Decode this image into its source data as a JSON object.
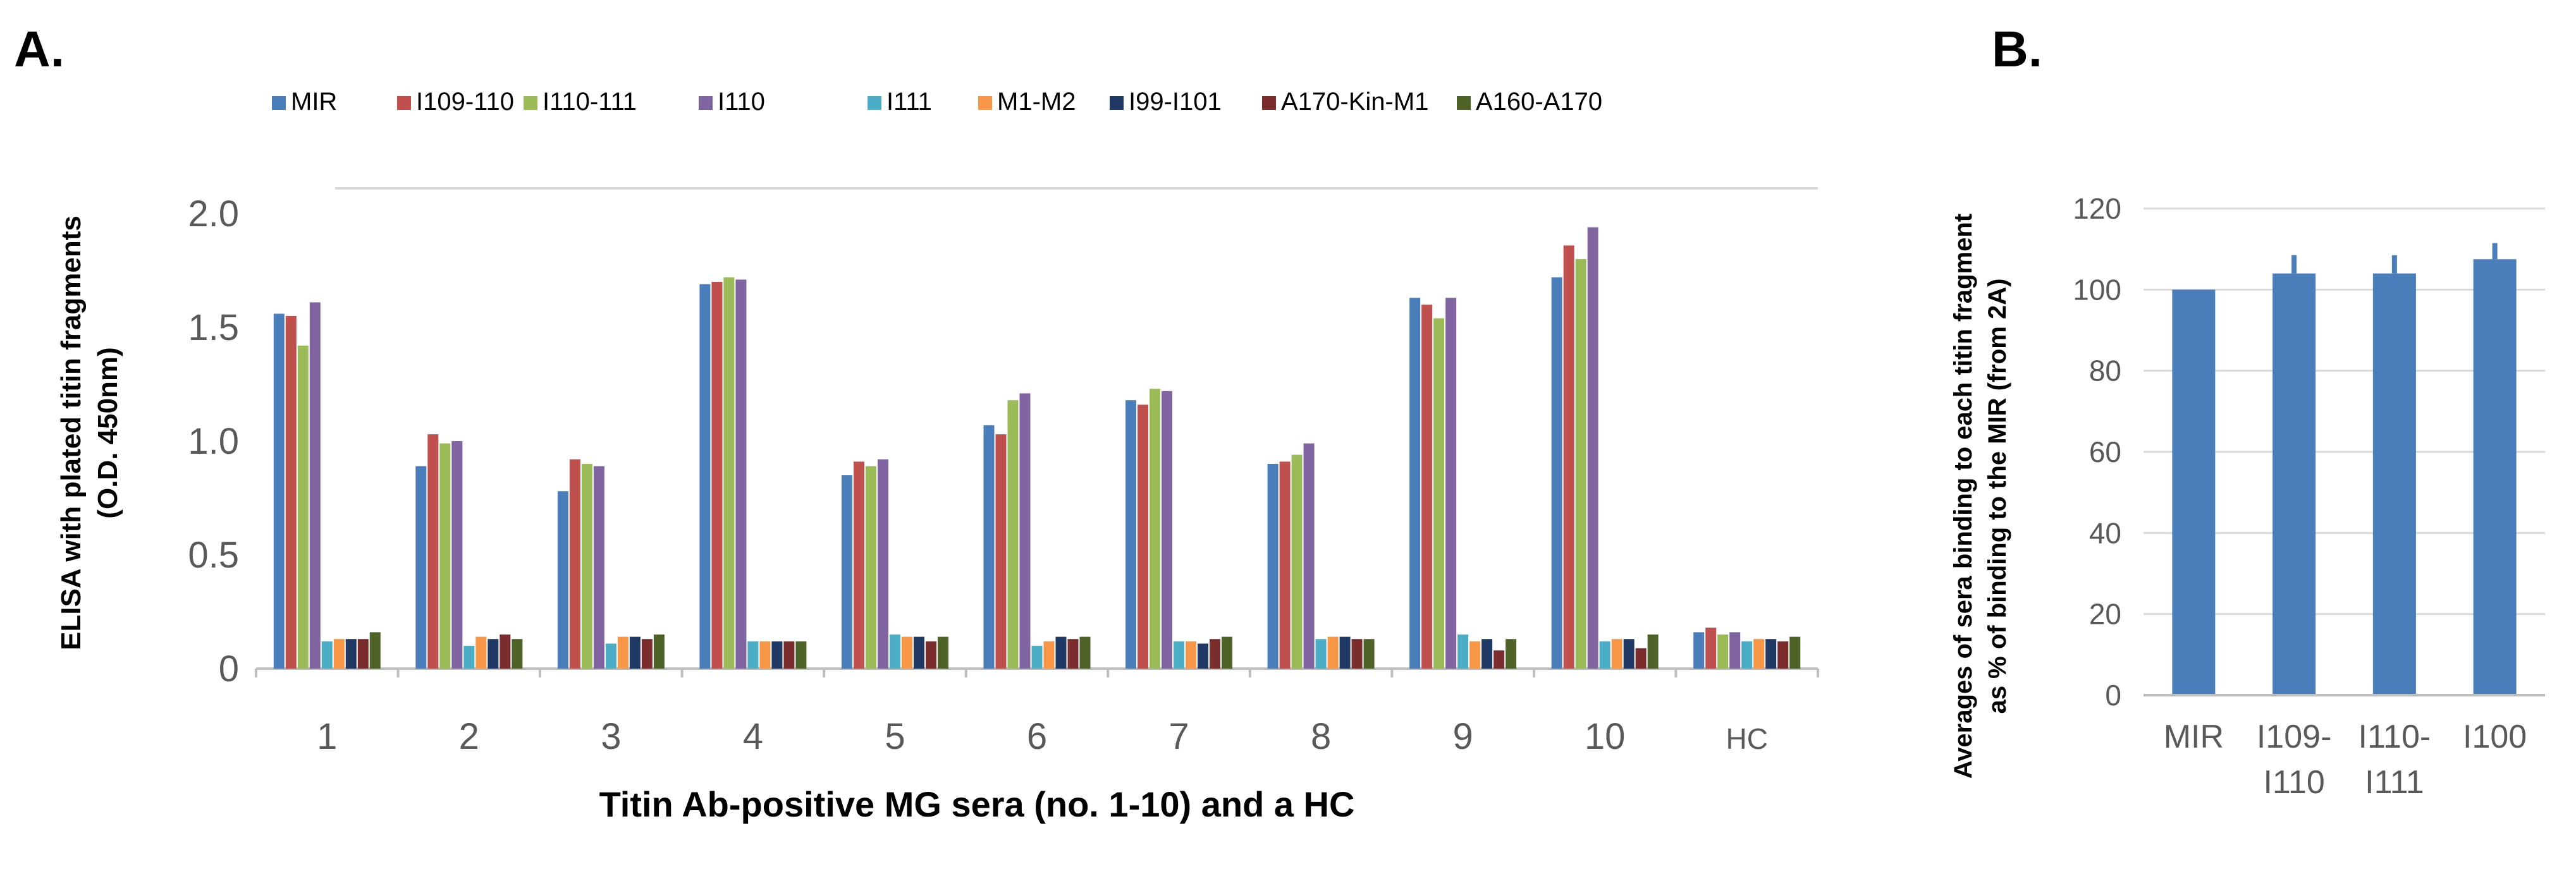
{
  "chart_data": [
    {
      "panel": "A.",
      "type": "bar",
      "title": "",
      "ylabel_line1": "ELISA with plated titin fragments",
      "ylabel_line2": "(O.D. 450nm)",
      "xlabel": "Titin Ab-positive MG sera (no. 1-10) and a HC",
      "ylim": [
        0,
        2.0
      ],
      "yticks": [
        "0",
        "0.5",
        "1.0",
        "1.5",
        "2.0"
      ],
      "ytick_values": [
        0,
        0.5,
        1.0,
        1.5,
        2.0
      ],
      "categories": [
        "1",
        "2",
        "3",
        "4",
        "5",
        "6",
        "7",
        "8",
        "9",
        "10",
        "HC"
      ],
      "series": [
        {
          "name": "MIR",
          "color": "#4A7EBB",
          "values": [
            1.56,
            0.89,
            0.78,
            1.69,
            0.85,
            1.07,
            1.18,
            0.9,
            1.63,
            1.72,
            0.16
          ]
        },
        {
          "name": "I109-110",
          "color": "#C0504D",
          "values": [
            1.55,
            1.03,
            0.92,
            1.7,
            0.91,
            1.03,
            1.16,
            0.91,
            1.6,
            1.86,
            0.18
          ]
        },
        {
          "name": "I110-111",
          "color": "#9BBB59",
          "values": [
            1.42,
            0.99,
            0.9,
            1.72,
            0.89,
            1.18,
            1.23,
            0.94,
            1.54,
            1.8,
            0.15
          ]
        },
        {
          "name": "I110",
          "color": "#8064A2",
          "values": [
            1.61,
            1.0,
            0.89,
            1.71,
            0.92,
            1.21,
            1.22,
            0.99,
            1.63,
            1.94,
            0.16
          ]
        },
        {
          "name": "I111",
          "color": "#4BACC6",
          "values": [
            0.12,
            0.1,
            0.11,
            0.12,
            0.15,
            0.1,
            0.12,
            0.13,
            0.15,
            0.12,
            0.12
          ]
        },
        {
          "name": "M1-M2",
          "color": "#F79646",
          "values": [
            0.13,
            0.14,
            0.14,
            0.12,
            0.14,
            0.12,
            0.12,
            0.14,
            0.12,
            0.13,
            0.13
          ]
        },
        {
          "name": "I99-I101",
          "color": "#1F3864",
          "values": [
            0.13,
            0.13,
            0.14,
            0.12,
            0.14,
            0.14,
            0.11,
            0.14,
            0.13,
            0.13,
            0.13
          ]
        },
        {
          "name": "A170-Kin-M1",
          "color": "#7B2C2C",
          "values": [
            0.13,
            0.15,
            0.13,
            0.12,
            0.12,
            0.13,
            0.13,
            0.13,
            0.08,
            0.09,
            0.12
          ]
        },
        {
          "name": "A160-A170",
          "color": "#4F6228",
          "values": [
            0.16,
            0.13,
            0.15,
            0.12,
            0.14,
            0.14,
            0.14,
            0.13,
            0.13,
            0.15,
            0.14
          ]
        }
      ]
    },
    {
      "panel": "B.",
      "type": "bar",
      "title": "",
      "ylabel_line1": "Averages of sera binding to each titin fragment",
      "ylabel_line2": "as % of binding to the MIR (from 2A)",
      "xlabel": "",
      "ylim": [
        0,
        120
      ],
      "yticks": [
        "0",
        "20",
        "40",
        "60",
        "80",
        "100",
        "120"
      ],
      "ytick_values": [
        0,
        20,
        40,
        60,
        80,
        100,
        120
      ],
      "categories": [
        [
          "MIR"
        ],
        [
          "I109-",
          "I110"
        ],
        [
          "I110-",
          "I111"
        ],
        [
          "I100"
        ]
      ],
      "values": [
        100,
        104,
        104,
        107.5
      ],
      "errors": [
        0,
        4.5,
        4.5,
        4
      ],
      "color": "#4A7EBB"
    }
  ]
}
